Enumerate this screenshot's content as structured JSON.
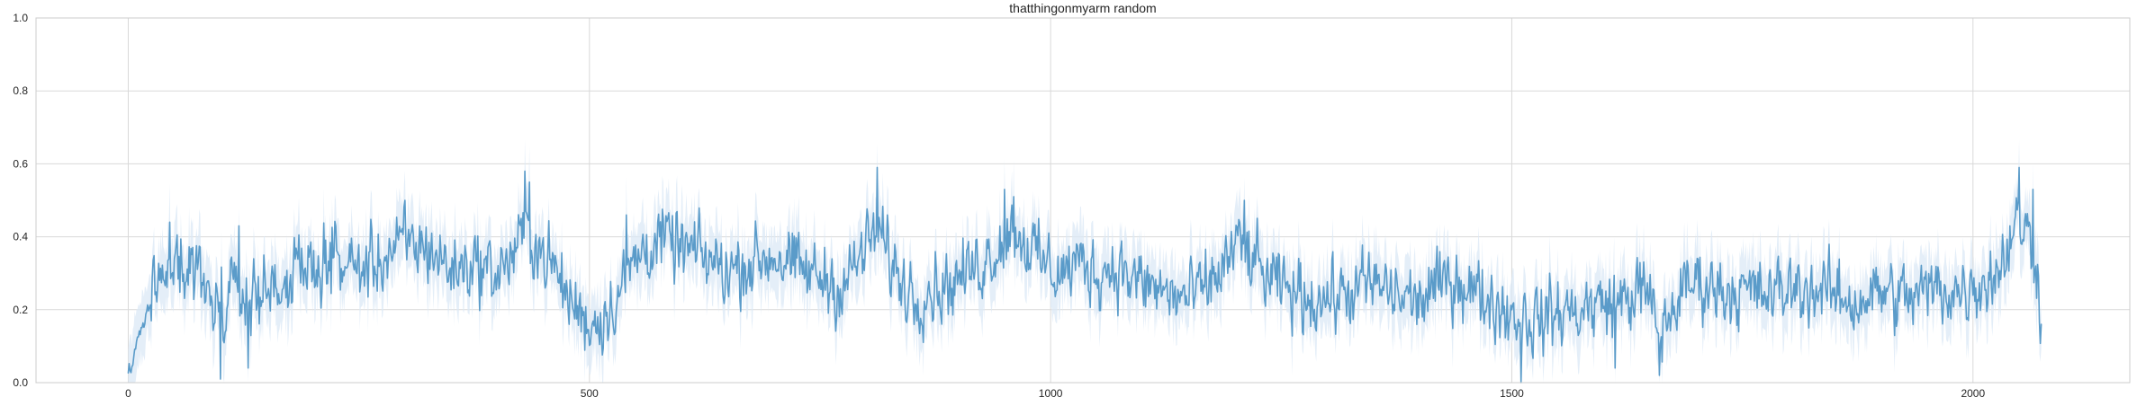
{
  "chart_data": {
    "type": "line",
    "title": "thatthingonmyarm random",
    "xlabel": "",
    "ylabel": "",
    "xlim": [
      -100,
      2170
    ],
    "ylim": [
      0,
      1.0
    ],
    "x_ticks": [
      0,
      500,
      1000,
      1500,
      2000
    ],
    "x_tick_labels": [
      "0",
      "500",
      "1000",
      "1500",
      "2000"
    ],
    "y_ticks": [
      0.0,
      0.2,
      0.4,
      0.6,
      0.8,
      1.0
    ],
    "y_tick_labels": [
      "0.0",
      "0.2",
      "0.4",
      "0.6",
      "0.8",
      "1.0"
    ],
    "grid": true,
    "legend": "none",
    "series": [
      {
        "color": "#5a9bc9",
        "band_color": "#dbe8f5",
        "band": "confidence interval around the mean, approx. ±0.08",
        "n_points": 2075,
        "x_start": 0,
        "x_end": 2074,
        "anchors": [
          [
            0,
            0.02
          ],
          [
            5,
            0.05
          ],
          [
            10,
            0.12
          ],
          [
            15,
            0.16
          ],
          [
            20,
            0.19
          ],
          [
            30,
            0.26
          ],
          [
            40,
            0.33
          ],
          [
            50,
            0.37
          ],
          [
            55,
            0.33
          ],
          [
            65,
            0.3
          ],
          [
            75,
            0.33
          ],
          [
            85,
            0.24
          ],
          [
            95,
            0.22
          ],
          [
            105,
            0.2
          ],
          [
            115,
            0.25
          ],
          [
            130,
            0.23
          ],
          [
            150,
            0.26
          ],
          [
            175,
            0.28
          ],
          [
            200,
            0.32
          ],
          [
            225,
            0.34
          ],
          [
            250,
            0.31
          ],
          [
            275,
            0.34
          ],
          [
            300,
            0.38
          ],
          [
            325,
            0.37
          ],
          [
            350,
            0.31
          ],
          [
            375,
            0.33
          ],
          [
            400,
            0.3
          ],
          [
            420,
            0.36
          ],
          [
            430,
            0.42
          ],
          [
            445,
            0.37
          ],
          [
            460,
            0.32
          ],
          [
            475,
            0.24
          ],
          [
            490,
            0.19
          ],
          [
            500,
            0.16
          ],
          [
            515,
            0.18
          ],
          [
            530,
            0.24
          ],
          [
            545,
            0.32
          ],
          [
            560,
            0.37
          ],
          [
            580,
            0.39
          ],
          [
            600,
            0.37
          ],
          [
            625,
            0.34
          ],
          [
            650,
            0.31
          ],
          [
            675,
            0.33
          ],
          [
            700,
            0.35
          ],
          [
            725,
            0.31
          ],
          [
            750,
            0.29
          ],
          [
            775,
            0.26
          ],
          [
            790,
            0.33
          ],
          [
            805,
            0.39
          ],
          [
            815,
            0.41
          ],
          [
            825,
            0.34
          ],
          [
            840,
            0.27
          ],
          [
            855,
            0.24
          ],
          [
            870,
            0.26
          ],
          [
            890,
            0.27
          ],
          [
            910,
            0.3
          ],
          [
            930,
            0.34
          ],
          [
            945,
            0.38
          ],
          [
            960,
            0.42
          ],
          [
            975,
            0.38
          ],
          [
            990,
            0.33
          ],
          [
            1010,
            0.3
          ],
          [
            1030,
            0.33
          ],
          [
            1050,
            0.3
          ],
          [
            1070,
            0.32
          ],
          [
            1090,
            0.28
          ],
          [
            1110,
            0.26
          ],
          [
            1130,
            0.24
          ],
          [
            1150,
            0.23
          ],
          [
            1170,
            0.26
          ],
          [
            1185,
            0.31
          ],
          [
            1195,
            0.35
          ],
          [
            1205,
            0.38
          ],
          [
            1220,
            0.33
          ],
          [
            1240,
            0.27
          ],
          [
            1260,
            0.25
          ],
          [
            1290,
            0.23
          ],
          [
            1320,
            0.24
          ],
          [
            1345,
            0.27
          ],
          [
            1370,
            0.25
          ],
          [
            1395,
            0.22
          ],
          [
            1420,
            0.26
          ],
          [
            1440,
            0.29
          ],
          [
            1460,
            0.25
          ],
          [
            1480,
            0.22
          ],
          [
            1500,
            0.19
          ],
          [
            1525,
            0.17
          ],
          [
            1550,
            0.19
          ],
          [
            1575,
            0.2
          ],
          [
            1600,
            0.22
          ],
          [
            1625,
            0.23
          ],
          [
            1640,
            0.26
          ],
          [
            1650,
            0.22
          ],
          [
            1660,
            0.13
          ],
          [
            1670,
            0.18
          ],
          [
            1685,
            0.25
          ],
          [
            1700,
            0.28
          ],
          [
            1725,
            0.26
          ],
          [
            1750,
            0.25
          ],
          [
            1780,
            0.24
          ],
          [
            1810,
            0.26
          ],
          [
            1840,
            0.25
          ],
          [
            1870,
            0.22
          ],
          [
            1900,
            0.25
          ],
          [
            1930,
            0.23
          ],
          [
            1960,
            0.26
          ],
          [
            1985,
            0.25
          ],
          [
            2005,
            0.27
          ],
          [
            2025,
            0.3
          ],
          [
            2040,
            0.38
          ],
          [
            2050,
            0.45
          ],
          [
            2060,
            0.4
          ],
          [
            2068,
            0.35
          ],
          [
            2074,
            0.19
          ]
        ],
        "noise_amplitude": 0.085,
        "spikes": [
          [
            45,
            0.44
          ],
          [
            100,
            0.01
          ],
          [
            120,
            0.43
          ],
          [
            130,
            0.04
          ],
          [
            300,
            0.5
          ],
          [
            430,
            0.58
          ],
          [
            435,
            0.55
          ],
          [
            540,
            0.46
          ],
          [
            812,
            0.59
          ],
          [
            950,
            0.53
          ],
          [
            960,
            0.51
          ],
          [
            1210,
            0.5
          ],
          [
            1510,
            0.0
          ],
          [
            1612,
            0.04
          ],
          [
            1660,
            0.02
          ],
          [
            2040,
            0.43
          ],
          [
            2050,
            0.59
          ],
          [
            2065,
            0.53
          ],
          [
            2074,
            0.16
          ]
        ]
      }
    ]
  }
}
